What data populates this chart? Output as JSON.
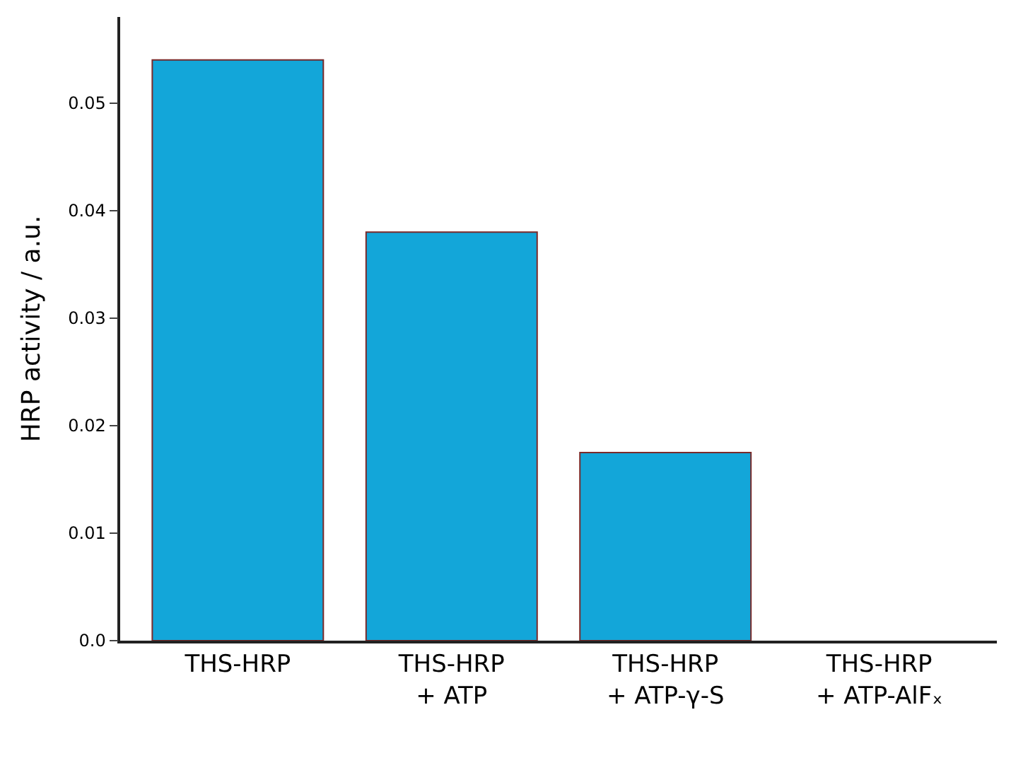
{
  "chart_data": {
    "type": "bar",
    "ylabel": "HRP activity / a.u.",
    "categories": [
      "THS-HRP",
      "THS-HRP\n+ ATP",
      "THS-HRP\n+ ATP-γ-S",
      "THS-HRP\n+ ATP-AlFₓ"
    ],
    "values": [
      0.054,
      0.038,
      0.0175,
      0
    ],
    "color": "#13a6d9",
    "ylim": [
      0,
      0.058
    ],
    "yticks": [
      {
        "value": 0,
        "label": "0.0"
      },
      0.01,
      0.02,
      0.03,
      0.04,
      0.05
    ],
    "legend": false
  }
}
